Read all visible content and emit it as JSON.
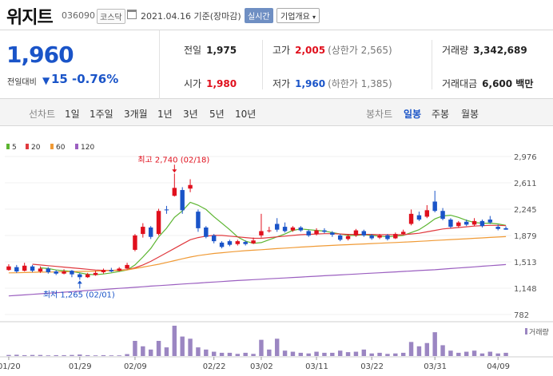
{
  "header": {
    "name": "위지트",
    "code": "036090",
    "market": "코스닥",
    "date": "2021.04.16 기준(장마감)",
    "realtime_label": "실시간",
    "company_label": "기업개요"
  },
  "quote": {
    "price": "1,960",
    "prev_label": "전일대비",
    "change": "15",
    "change_pct": "-0.76%",
    "prev_close_label": "전일",
    "prev_close": "1,975",
    "open_label": "시가",
    "open": "1,980",
    "high_label": "고가",
    "high": "2,005",
    "upper_limit": "(상한가 2,565)",
    "low_label": "저가",
    "low": "1,960",
    "lower_limit": "(하한가 1,385)",
    "volume_label": "거래량",
    "volume": "3,342,689",
    "amount_label": "거래대금",
    "amount": "6,600 백만"
  },
  "toolbar": {
    "line_label": "선차트",
    "periods": [
      "1일",
      "1주일",
      "3개월",
      "1년",
      "3년",
      "5년",
      "10년"
    ],
    "candle_label": "봉차트",
    "candles": [
      "일봉",
      "주봉",
      "월봉"
    ],
    "active_candle": "일봉"
  },
  "colors": {
    "up": "#e0101d",
    "down": "#1a54c8",
    "ma5": "#5cb531",
    "ma20": "#e0393e",
    "ma60": "#f09a35",
    "ma120": "#9b5fc0",
    "volume": "#9b86c2"
  },
  "chart_data": {
    "type": "candlestick",
    "legend": [
      {
        "name": "5",
        "color": "#5cb531"
      },
      {
        "name": "20",
        "color": "#e0393e"
      },
      {
        "name": "60",
        "color": "#f09a35"
      },
      {
        "name": "120",
        "color": "#9b5fc0"
      }
    ],
    "y_ticks": [
      "2,976",
      "2,611",
      "2,245",
      "1,879",
      "1,513",
      "1,148",
      "782"
    ],
    "ylim": [
      782,
      2976
    ],
    "x_ticks": [
      "01/20",
      "01/29",
      "02/09",
      "02/22",
      "03/02",
      "03/11",
      "03/22",
      "03/31",
      "04/09"
    ],
    "annotations": {
      "high": "최고 2,740 (02/18)",
      "low": "최저 1,265 (02/01)"
    },
    "volume_label": "거래량",
    "candles": [
      {
        "o": 1400,
        "c": 1450,
        "h": 1480,
        "l": 1390
      },
      {
        "o": 1440,
        "c": 1380,
        "h": 1470,
        "l": 1360
      },
      {
        "o": 1390,
        "c": 1460,
        "h": 1500,
        "l": 1380
      },
      {
        "o": 1450,
        "c": 1390,
        "h": 1470,
        "l": 1370
      },
      {
        "o": 1380,
        "c": 1420,
        "h": 1450,
        "l": 1360
      },
      {
        "o": 1420,
        "c": 1370,
        "h": 1440,
        "l": 1350
      },
      {
        "o": 1380,
        "c": 1350,
        "h": 1400,
        "l": 1330
      },
      {
        "o": 1350,
        "c": 1380,
        "h": 1410,
        "l": 1340
      },
      {
        "o": 1390,
        "c": 1340,
        "h": 1400,
        "l": 1300
      },
      {
        "o": 1340,
        "c": 1300,
        "h": 1360,
        "l": 1265
      },
      {
        "o": 1300,
        "c": 1340,
        "h": 1360,
        "l": 1290
      },
      {
        "o": 1330,
        "c": 1360,
        "h": 1390,
        "l": 1320
      },
      {
        "o": 1370,
        "c": 1400,
        "h": 1420,
        "l": 1350
      },
      {
        "o": 1400,
        "c": 1380,
        "h": 1430,
        "l": 1370
      },
      {
        "o": 1390,
        "c": 1420,
        "h": 1440,
        "l": 1380
      },
      {
        "o": 1420,
        "c": 1470,
        "h": 1500,
        "l": 1410
      },
      {
        "o": 1680,
        "c": 1880,
        "h": 1900,
        "l": 1660
      },
      {
        "o": 1900,
        "c": 2000,
        "h": 2050,
        "l": 1850
      },
      {
        "o": 1990,
        "c": 1860,
        "h": 2010,
        "l": 1830
      },
      {
        "o": 1900,
        "c": 2220,
        "h": 2250,
        "l": 1880
      },
      {
        "o": 2240,
        "c": 2230,
        "h": 2290,
        "l": 2180
      },
      {
        "o": 2430,
        "c": 2540,
        "h": 2740,
        "l": 2420
      },
      {
        "o": 2510,
        "c": 2230,
        "h": 2550,
        "l": 2180
      },
      {
        "o": 2530,
        "c": 2580,
        "h": 2660,
        "l": 2480
      },
      {
        "o": 2210,
        "c": 1980,
        "h": 2240,
        "l": 1930
      },
      {
        "o": 1990,
        "c": 1860,
        "h": 2010,
        "l": 1840
      },
      {
        "o": 1880,
        "c": 1800,
        "h": 1900,
        "l": 1770
      },
      {
        "o": 1780,
        "c": 1720,
        "h": 1800,
        "l": 1700
      },
      {
        "o": 1800,
        "c": 1750,
        "h": 1820,
        "l": 1730
      },
      {
        "o": 1760,
        "c": 1800,
        "h": 1820,
        "l": 1740
      },
      {
        "o": 1790,
        "c": 1760,
        "h": 1810,
        "l": 1740
      },
      {
        "o": 1770,
        "c": 1810,
        "h": 1850,
        "l": 1760
      },
      {
        "o": 1880,
        "c": 1940,
        "h": 2180,
        "l": 1850
      },
      {
        "o": 1940,
        "c": 1950,
        "h": 2000,
        "l": 1920
      },
      {
        "o": 2040,
        "c": 1960,
        "h": 2120,
        "l": 1930
      },
      {
        "o": 2000,
        "c": 1940,
        "h": 2060,
        "l": 1920
      },
      {
        "o": 1950,
        "c": 1990,
        "h": 2010,
        "l": 1930
      },
      {
        "o": 1990,
        "c": 1950,
        "h": 2010,
        "l": 1930
      },
      {
        "o": 1940,
        "c": 1880,
        "h": 1960,
        "l": 1860
      },
      {
        "o": 1900,
        "c": 1950,
        "h": 1980,
        "l": 1880
      },
      {
        "o": 1950,
        "c": 1930,
        "h": 1980,
        "l": 1910
      },
      {
        "o": 1920,
        "c": 1890,
        "h": 1940,
        "l": 1860
      },
      {
        "o": 1880,
        "c": 1820,
        "h": 1900,
        "l": 1800
      },
      {
        "o": 1830,
        "c": 1870,
        "h": 1900,
        "l": 1810
      },
      {
        "o": 1880,
        "c": 1950,
        "h": 1970,
        "l": 1860
      },
      {
        "o": 1940,
        "c": 1880,
        "h": 1960,
        "l": 1860
      },
      {
        "o": 1880,
        "c": 1840,
        "h": 1900,
        "l": 1820
      },
      {
        "o": 1850,
        "c": 1880,
        "h": 1900,
        "l": 1830
      },
      {
        "o": 1880,
        "c": 1830,
        "h": 1900,
        "l": 1810
      },
      {
        "o": 1840,
        "c": 1900,
        "h": 1920,
        "l": 1830
      },
      {
        "o": 1900,
        "c": 1930,
        "h": 1960,
        "l": 1890
      },
      {
        "o": 2040,
        "c": 2180,
        "h": 2240,
        "l": 2020
      },
      {
        "o": 2160,
        "c": 2100,
        "h": 2210,
        "l": 2080
      },
      {
        "o": 2140,
        "c": 2230,
        "h": 2300,
        "l": 2120
      },
      {
        "o": 2350,
        "c": 2220,
        "h": 2500,
        "l": 2200
      },
      {
        "o": 2220,
        "c": 2110,
        "h": 2260,
        "l": 2090
      },
      {
        "o": 2100,
        "c": 2000,
        "h": 2120,
        "l": 1980
      },
      {
        "o": 2010,
        "c": 2060,
        "h": 2080,
        "l": 1990
      },
      {
        "o": 2070,
        "c": 2030,
        "h": 2100,
        "l": 2010
      },
      {
        "o": 2030,
        "c": 2080,
        "h": 2120,
        "l": 2010
      },
      {
        "o": 2080,
        "c": 2010,
        "h": 2100,
        "l": 1990
      },
      {
        "o": 2100,
        "c": 2060,
        "h": 2150,
        "l": 2040
      },
      {
        "o": 2000,
        "c": 1970,
        "h": 2030,
        "l": 1950
      },
      {
        "o": 1980,
        "c": 1960,
        "h": 2005,
        "l": 1960
      }
    ],
    "ma": {
      "ma5": [
        null,
        null,
        null,
        null,
        1430,
        1420,
        1400,
        1390,
        1380,
        1360,
        1340,
        1335,
        1345,
        1360,
        1380,
        1400,
        1470,
        1580,
        1700,
        1860,
        1980,
        2130,
        2220,
        2340,
        2300,
        2240,
        2140,
        2050,
        1960,
        1860,
        1800,
        1770,
        1780,
        1820,
        1860,
        1900,
        1950,
        1970,
        1960,
        1950,
        1940,
        1920,
        1900,
        1880,
        1880,
        1890,
        1880,
        1870,
        1860,
        1870,
        1880,
        1920,
        1960,
        2030,
        2110,
        2150,
        2160,
        2130,
        2090,
        2060,
        2050,
        2050,
        2040,
        2020
      ],
      "ma20": [
        null,
        null,
        null,
        1480,
        1470,
        1460,
        1450,
        1440,
        1430,
        1420,
        1410,
        1400,
        1395,
        1395,
        1400,
        1405,
        1430,
        1470,
        1520,
        1580,
        1640,
        1700,
        1760,
        1820,
        1850,
        1870,
        1880,
        1880,
        1870,
        1860,
        1850,
        1840,
        1840,
        1850,
        1860,
        1870,
        1880,
        1890,
        1895,
        1900,
        1905,
        1905,
        1900,
        1895,
        1895,
        1895,
        1895,
        1890,
        1890,
        1890,
        1890,
        1900,
        1910,
        1930,
        1950,
        1970,
        1980,
        1990,
        2000,
        2010,
        2015,
        2020,
        2020,
        2015
      ],
      "ma60": [
        1360,
        1362,
        1365,
        1368,
        1370,
        1372,
        1374,
        1376,
        1378,
        1380,
        1382,
        1385,
        1388,
        1392,
        1396,
        1400,
        1420,
        1440,
        1460,
        1480,
        1505,
        1530,
        1555,
        1580,
        1600,
        1615,
        1630,
        1640,
        1650,
        1660,
        1668,
        1675,
        1682,
        1690,
        1697,
        1704,
        1711,
        1718,
        1724,
        1730,
        1736,
        1742,
        1747,
        1752,
        1757,
        1762,
        1767,
        1772,
        1777,
        1782,
        1787,
        1792,
        1798,
        1804,
        1810,
        1816,
        1822,
        1828,
        1834,
        1840,
        1846,
        1852,
        1858,
        1864
      ],
      "ma120": [
        1040,
        1048,
        1055,
        1062,
        1070,
        1078,
        1085,
        1092,
        1100,
        1108,
        1115,
        1122,
        1130,
        1138,
        1145,
        1152,
        1160,
        1168,
        1176,
        1183,
        1190,
        1198,
        1205,
        1212,
        1219,
        1226,
        1233,
        1240,
        1247,
        1254,
        1260,
        1266,
        1272,
        1278,
        1284,
        1290,
        1296,
        1302,
        1308,
        1314,
        1320,
        1326,
        1332,
        1338,
        1344,
        1350,
        1356,
        1362,
        1368,
        1374,
        1380,
        1386,
        1392,
        1398,
        1404,
        1412,
        1420,
        1428,
        1436,
        1444,
        1452,
        1460,
        1468,
        1476
      ]
    },
    "volume": [
      5,
      6,
      4,
      5,
      5,
      3,
      4,
      4,
      5,
      7,
      4,
      3,
      4,
      3,
      3,
      9,
      70,
      45,
      30,
      70,
      40,
      140,
      90,
      80,
      40,
      30,
      20,
      15,
      15,
      10,
      15,
      10,
      75,
      30,
      80,
      25,
      20,
      15,
      12,
      20,
      15,
      15,
      25,
      18,
      20,
      30,
      12,
      15,
      10,
      12,
      15,
      65,
      45,
      60,
      110,
      50,
      25,
      15,
      20,
      25,
      12,
      20,
      12,
      15
    ],
    "volume_max": 140
  }
}
